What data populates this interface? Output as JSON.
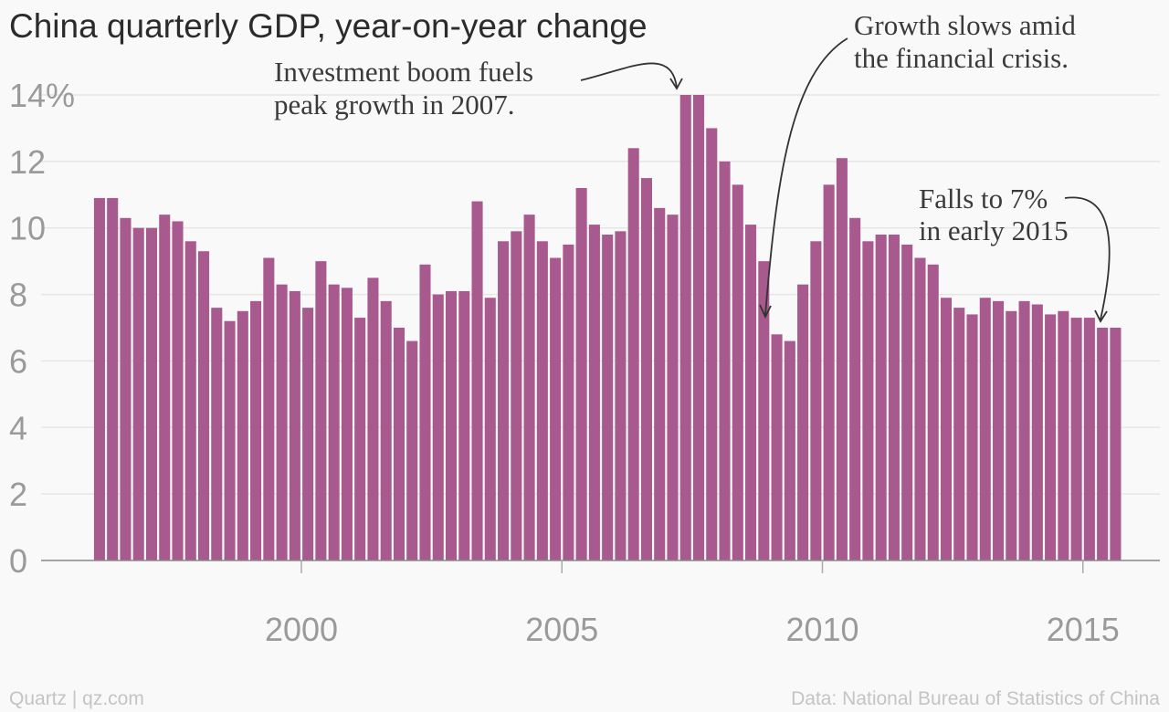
{
  "chart_data": {
    "type": "bar",
    "title": "China quarterly GDP, year-on-year change",
    "ylim": [
      0,
      14
    ],
    "yticks": [
      0,
      2,
      4,
      6,
      8,
      10,
      12,
      14
    ],
    "ytick_labels": [
      "0",
      "2",
      "4",
      "6",
      "8",
      "10",
      "12",
      "14%"
    ],
    "xticks": [
      2000,
      2005,
      2010,
      2015
    ],
    "xtick_labels": [
      "2000",
      "2005",
      "2010",
      "2015"
    ],
    "x_start": 1996.0,
    "x_step": 0.25,
    "bar_color": "#a85a8e",
    "grid": true,
    "values": [
      10.9,
      10.9,
      10.3,
      10.0,
      10.0,
      10.4,
      10.2,
      9.6,
      9.3,
      7.6,
      7.2,
      7.5,
      7.8,
      9.1,
      8.3,
      8.1,
      7.6,
      9.0,
      8.3,
      8.2,
      7.3,
      8.5,
      7.8,
      7.0,
      6.6,
      8.9,
      8.0,
      8.1,
      8.1,
      10.8,
      7.9,
      9.6,
      9.9,
      10.4,
      9.6,
      9.1,
      9.5,
      11.2,
      10.1,
      9.8,
      9.9,
      12.4,
      11.5,
      10.6,
      10.4,
      14.0,
      14.0,
      13.0,
      12.0,
      11.3,
      10.1,
      9.0,
      6.8,
      6.6,
      8.3,
      9.6,
      11.3,
      12.1,
      10.3,
      9.6,
      9.8,
      9.8,
      9.5,
      9.1,
      8.9,
      7.9,
      7.6,
      7.4,
      7.9,
      7.8,
      7.5,
      7.8,
      7.7,
      7.4,
      7.5,
      7.3,
      7.3,
      7.0,
      7.0
    ],
    "annotations": [
      {
        "lines": [
          "Investment boom fuels",
          "peak growth in 2007."
        ]
      },
      {
        "lines": [
          "Growth slows amid",
          "the financial crisis."
        ]
      },
      {
        "lines": [
          "Falls to 7%",
          "in early 2015"
        ]
      }
    ]
  },
  "footer": {
    "source_left": "Quartz | qz.com",
    "source_right": "Data: National Bureau of Statistics of China"
  }
}
